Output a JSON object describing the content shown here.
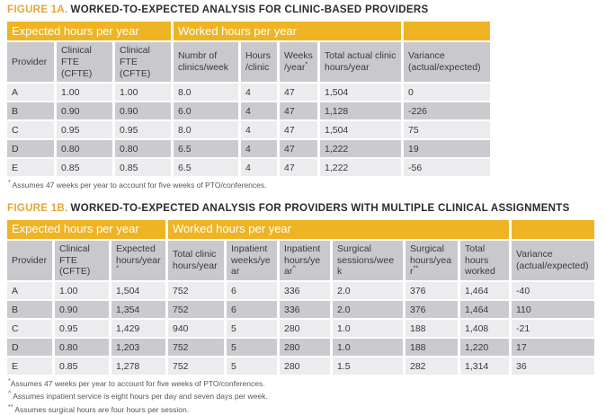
{
  "colors": {
    "band_yellow": "#efb424",
    "figure_label_gold": "#e5a53a",
    "header_gray": "#c9c9cd",
    "row_light": "#ececee",
    "row_dark": "#cbcbcf"
  },
  "fig1a": {
    "label": "FIGURE 1A.",
    "title": "WORKED-TO-EXPECTED ANALYSIS FOR CLINIC-BASED PROVIDERS",
    "group_headers": [
      "Expected hours per year",
      "Worked hours per year",
      ""
    ],
    "columns": [
      {
        "label": "Provider",
        "sup": ""
      },
      {
        "label": "Clinical FTE (CFTE)",
        "sup": ""
      },
      {
        "label": "Clinical FTE (CFTE)",
        "sup": ""
      },
      {
        "label": "Numbr of clinics/week",
        "sup": ""
      },
      {
        "label": "Hours/clinic",
        "sup": ""
      },
      {
        "label": "Weeks/year",
        "sup": "*"
      },
      {
        "label": "Total actual clinic hours/year",
        "sup": ""
      },
      {
        "label": "Variance (actual/expected)",
        "sup": ""
      }
    ],
    "rows": [
      [
        "A",
        "1.00",
        "1.00",
        "8.0",
        "4",
        "47",
        "1,504",
        "0"
      ],
      [
        "B",
        "0.90",
        "0.90",
        "6.0",
        "4",
        "47",
        "1,128",
        "-226"
      ],
      [
        "C",
        "0.95",
        "0.95",
        "8.0",
        "4",
        "47",
        "1,504",
        "75"
      ],
      [
        "D",
        "0.80",
        "0.80",
        "6.5",
        "4",
        "47",
        "1,222",
        "19"
      ],
      [
        "E",
        "0.85",
        "0.85",
        "6.5",
        "4",
        "47",
        "1,222",
        "-56"
      ]
    ],
    "footnotes": [
      {
        "sup": "*",
        "text": "Assumes 47 weeks per year to account for five weeks of PTO/conferences."
      }
    ]
  },
  "fig1b": {
    "label": "FIGURE 1B.",
    "title": "WORKED-TO-EXPECTED ANALYSIS FOR PROVIDERS WITH MULTIPLE CLINICAL ASSIGNMENTS",
    "group_headers": [
      "Expected hours per year",
      "Worked hours per year",
      ""
    ],
    "columns": [
      {
        "label": "Provider",
        "sup": ""
      },
      {
        "label": "Clinical FTE (CFTE)",
        "sup": ""
      },
      {
        "label": "Expected hours/year",
        "sup": "*"
      },
      {
        "label": "Total clinic hours/year",
        "sup": ""
      },
      {
        "label": "Inpatient weeks/year",
        "sup": ""
      },
      {
        "label": "Inpatient hours/year",
        "sup": "^"
      },
      {
        "label": "Surgical sessions/week",
        "sup": ""
      },
      {
        "label": "Surgical hours/year",
        "sup": "**"
      },
      {
        "label": "Total hours worked",
        "sup": ""
      },
      {
        "label": "Variance (actual/expected)",
        "sup": ""
      }
    ],
    "rows": [
      [
        "A",
        "1.00",
        "1,504",
        "752",
        "6",
        "336",
        "2.0",
        "376",
        "1,464",
        "-40"
      ],
      [
        "B",
        "0.90",
        "1,354",
        "752",
        "6",
        "336",
        "2.0",
        "376",
        "1,464",
        "110"
      ],
      [
        "C",
        "0.95",
        "1,429",
        "940",
        "5",
        "280",
        "1.0",
        "188",
        "1,408",
        "-21"
      ],
      [
        "D",
        "0.80",
        "1,203",
        "752",
        "5",
        "280",
        "1.0",
        "188",
        "1,220",
        "17"
      ],
      [
        "E",
        "0.85",
        "1,278",
        "752",
        "5",
        "280",
        "1.5",
        "282",
        "1,314",
        "36"
      ]
    ],
    "footnotes": [
      {
        "sup": "*",
        "text": "Assumes 47 weeks per year to account for five weeks of PTO/conferences."
      },
      {
        "sup": "^",
        "text": "Assumes inpatient service is eight hours per day and seven days per week."
      },
      {
        "sup": "**",
        "text": "Assumes surgical hours are four hours per session."
      }
    ]
  }
}
